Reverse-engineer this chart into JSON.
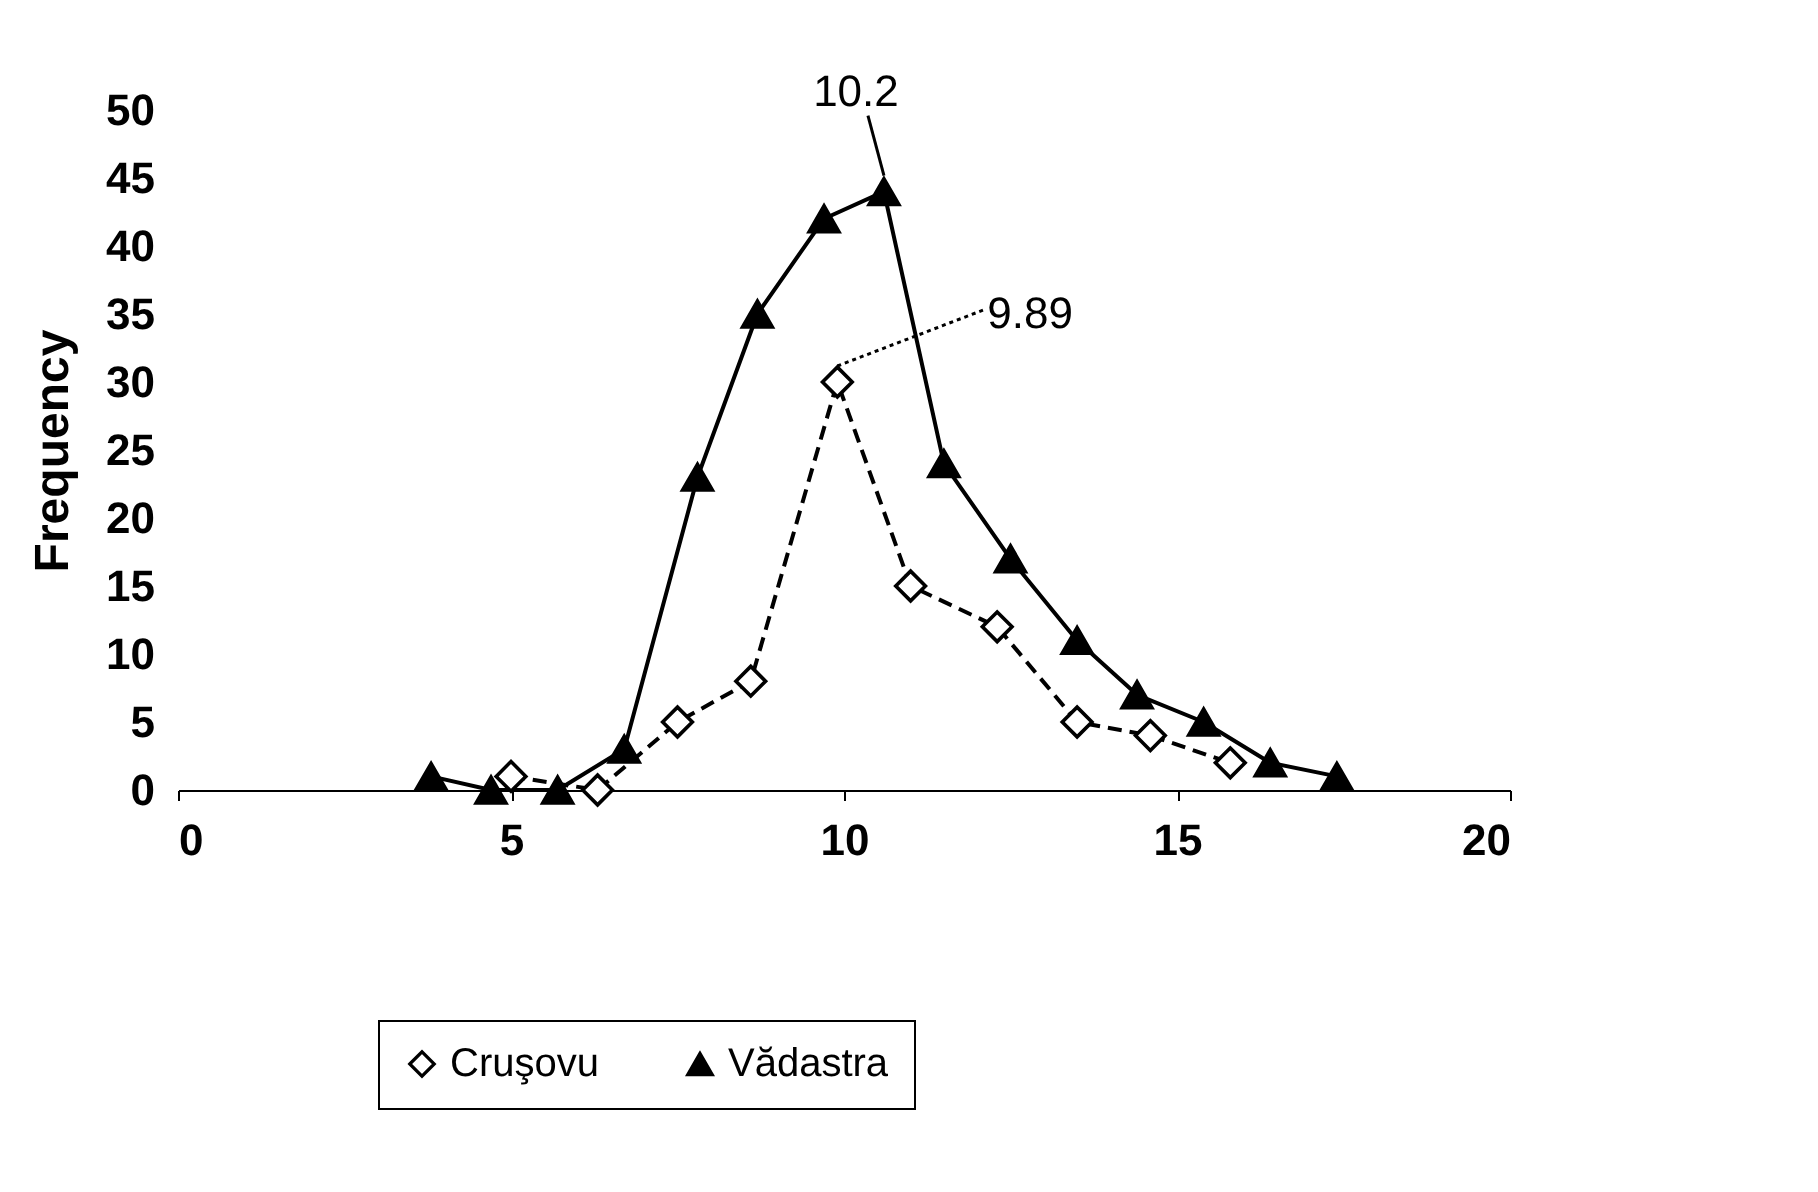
{
  "chart_data": {
    "type": "line",
    "ylabel": "Frequency",
    "xlim": [
      0,
      20
    ],
    "xticks": [
      0,
      5,
      10,
      15,
      20
    ],
    "ylim": [
      0,
      50
    ],
    "yticks": [
      0,
      5,
      10,
      15,
      20,
      25,
      30,
      35,
      40,
      45,
      50
    ],
    "grid": false,
    "legend": "bottom",
    "annotations": [
      {
        "text": "10.2",
        "x": 10.6,
        "y": 44
      },
      {
        "text": "9.89",
        "x": 9.9,
        "y": 30
      }
    ],
    "series": [
      {
        "name": "Cruşovu",
        "color": "#000000",
        "marker": "diamond",
        "line_style": "dashed",
        "x": [
          5.0,
          6.3,
          7.5,
          8.6,
          9.9,
          11.0,
          12.3,
          13.5,
          14.6,
          15.8
        ],
        "values": [
          1,
          0,
          5,
          8,
          30,
          15,
          12,
          5,
          4,
          2
        ]
      },
      {
        "name": "Vădastra",
        "color": "#000000",
        "marker": "triangle",
        "line_style": "solid",
        "x": [
          3.8,
          4.7,
          5.7,
          6.7,
          7.8,
          8.7,
          9.7,
          10.6,
          11.5,
          12.5,
          13.5,
          14.4,
          15.4,
          16.4,
          17.4
        ],
        "values": [
          1,
          0,
          0,
          3,
          23,
          35,
          42,
          44,
          24,
          17,
          11,
          7,
          5,
          2,
          1
        ]
      }
    ]
  }
}
